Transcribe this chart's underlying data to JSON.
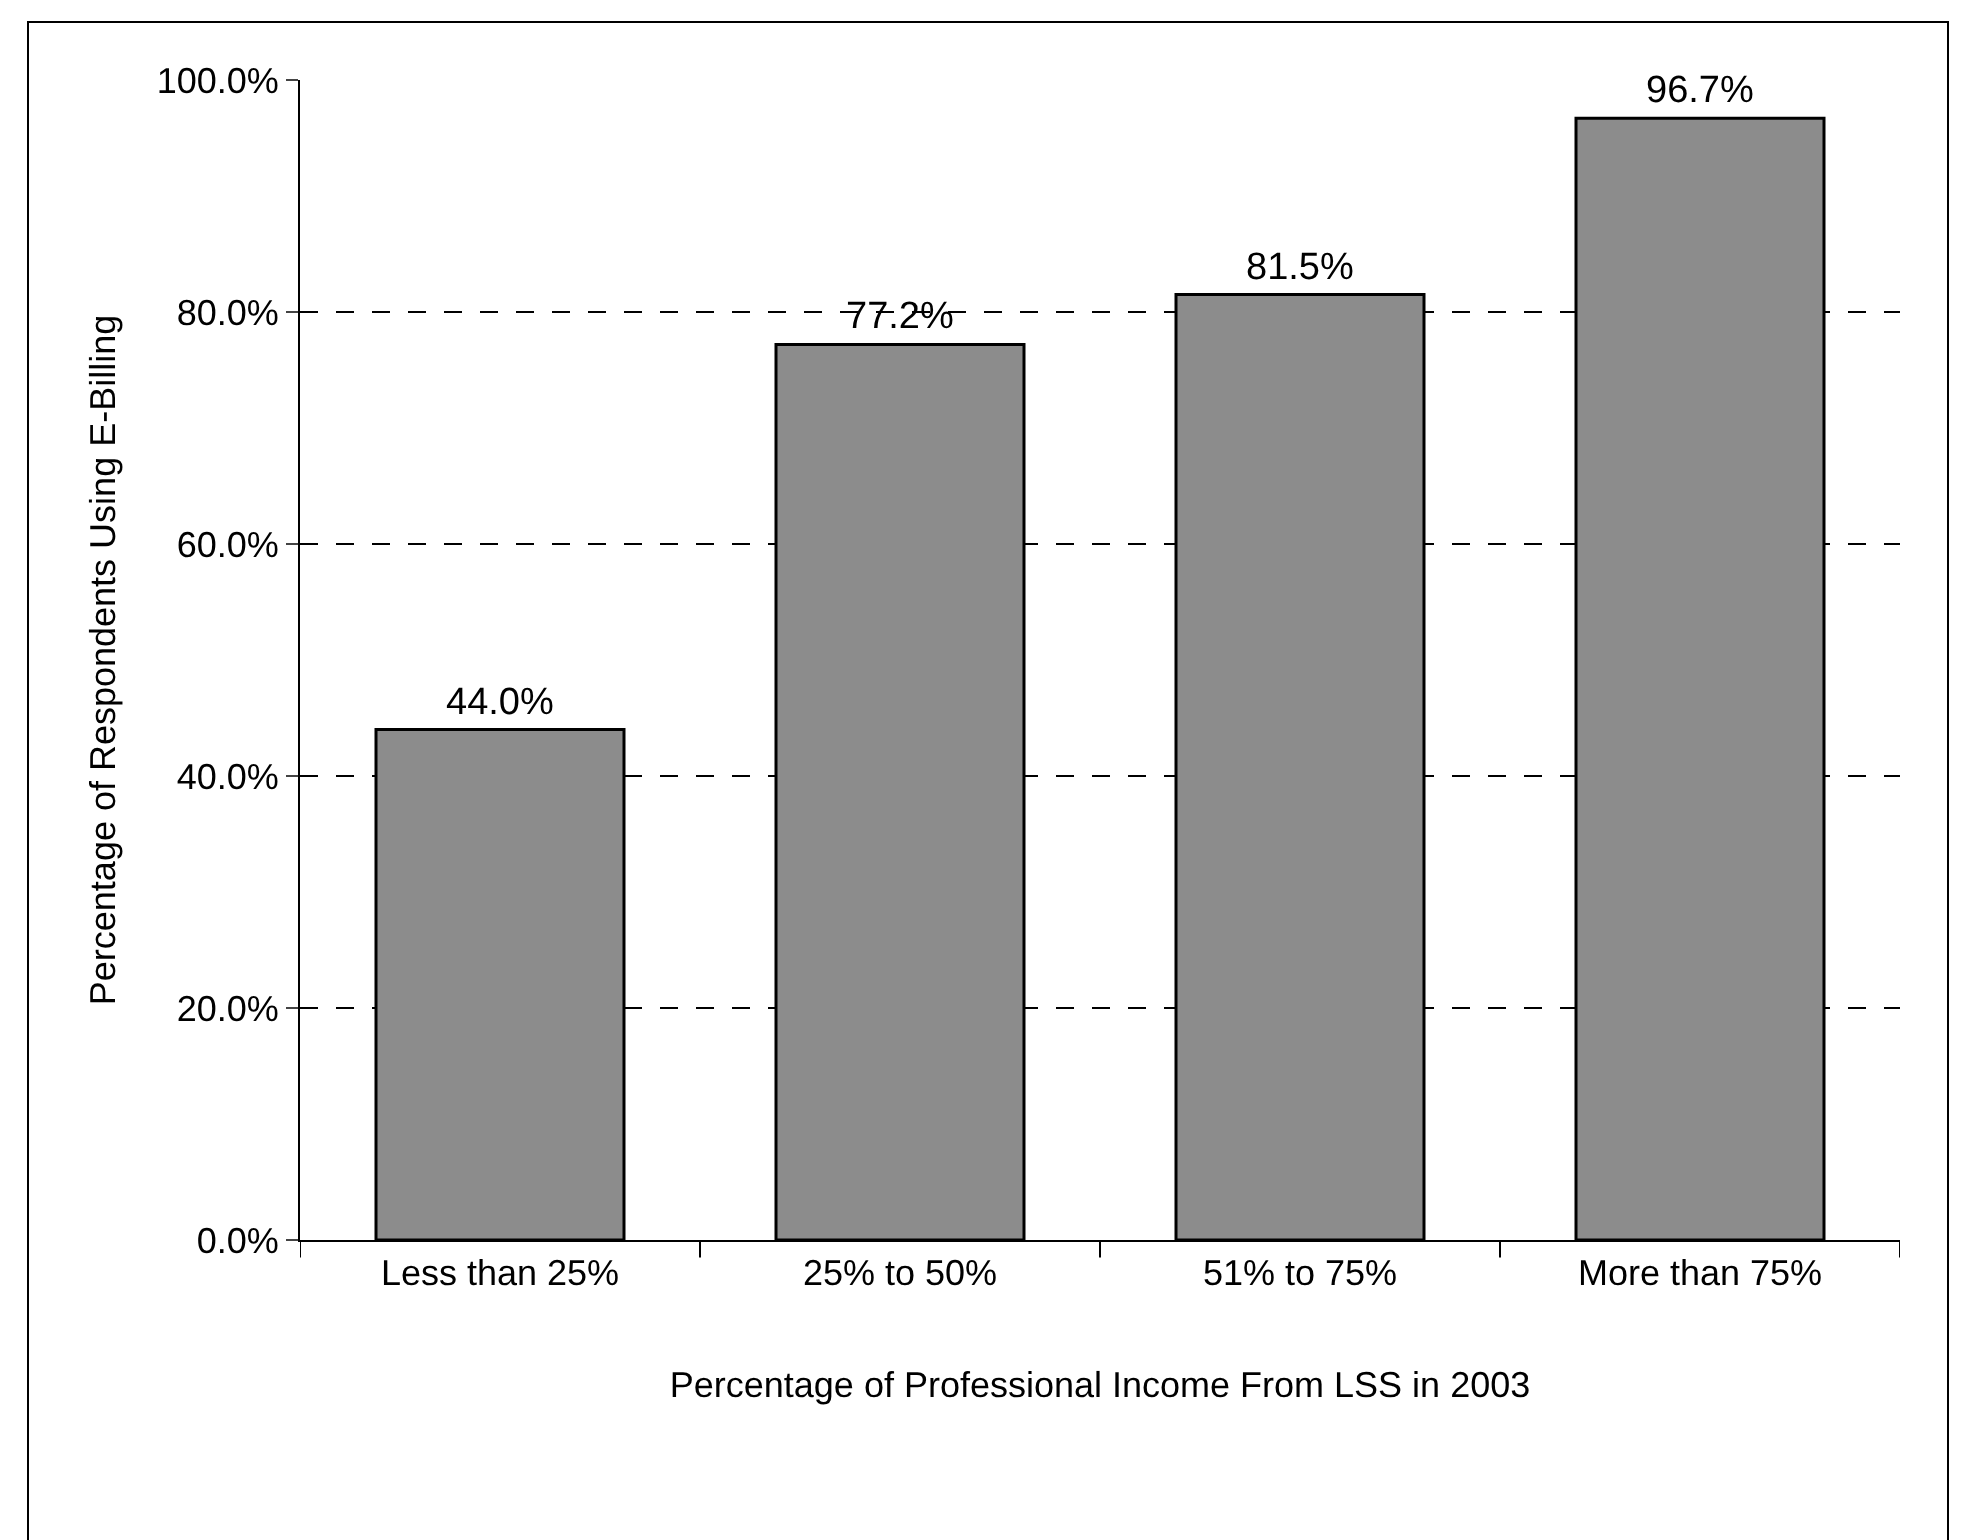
{
  "chart_data": {
    "type": "bar",
    "xlabel": "Percentage of Professional Income From LSS in 2003",
    "ylabel": "Percentage of Respondents Using E-Billing",
    "categories": [
      "Less than 25%",
      "25% to 50%",
      "51% to 75%",
      "More than 75%"
    ],
    "values": [
      44.0,
      77.2,
      81.5,
      96.7
    ],
    "value_labels": [
      "44.0%",
      "77.2%",
      "81.5%",
      "96.7%"
    ],
    "color": "#8c8c8c",
    "ylim": [
      0,
      100
    ],
    "yticks": [
      {
        "value": 0,
        "label": "0.0%"
      },
      {
        "value": 20,
        "label": "20.0%"
      },
      {
        "value": 40,
        "label": "40.0%"
      },
      {
        "value": 60,
        "label": "60.0%"
      },
      {
        "value": 80,
        "label": "80.0%"
      },
      {
        "value": 100,
        "label": "100.0%"
      }
    ],
    "grid": "y",
    "legend": false
  }
}
